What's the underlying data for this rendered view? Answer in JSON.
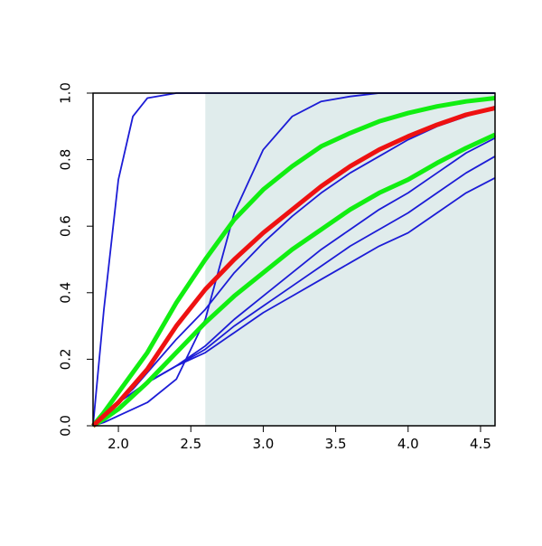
{
  "chart_data": {
    "type": "line",
    "x": [
      1.825,
      1.9,
      2.0,
      2.1,
      2.2,
      2.4,
      2.6,
      2.8,
      3.0,
      3.2,
      3.4,
      3.6,
      3.8,
      4.0,
      4.2,
      4.4,
      4.6
    ],
    "series": [
      {
        "color": "#1c1cd6",
        "weight": "normal",
        "values": [
          0,
          0.35,
          0.74,
          0.93,
          0.985,
          1,
          1,
          1,
          1,
          1,
          1,
          1,
          1,
          1,
          1,
          1,
          1
        ]
      },
      {
        "color": "#1c1cd6",
        "weight": "normal",
        "values": [
          0,
          0.01,
          0.03,
          0.05,
          0.07,
          0.14,
          0.32,
          0.64,
          0.83,
          0.93,
          0.975,
          0.99,
          1,
          1,
          1,
          1,
          1
        ]
      },
      {
        "color": "#1c1cd6",
        "weight": "normal",
        "values": [
          0,
          0.03,
          0.07,
          0.11,
          0.16,
          0.26,
          0.35,
          0.46,
          0.55,
          0.63,
          0.7,
          0.76,
          0.81,
          0.86,
          0.9,
          0.93,
          0.96
        ]
      },
      {
        "color": "#1c1cd6",
        "weight": "normal",
        "values": [
          0,
          0.03,
          0.07,
          0.1,
          0.13,
          0.18,
          0.24,
          0.32,
          0.39,
          0.46,
          0.53,
          0.59,
          0.65,
          0.7,
          0.76,
          0.82,
          0.865
        ]
      },
      {
        "color": "#1c1cd6",
        "weight": "normal",
        "values": [
          0,
          0.03,
          0.07,
          0.1,
          0.13,
          0.18,
          0.23,
          0.3,
          0.36,
          0.42,
          0.48,
          0.54,
          0.59,
          0.64,
          0.7,
          0.76,
          0.81
        ]
      },
      {
        "color": "#1c1cd6",
        "weight": "normal",
        "values": [
          0,
          0.03,
          0.07,
          0.1,
          0.13,
          0.18,
          0.22,
          0.28,
          0.34,
          0.39,
          0.44,
          0.49,
          0.54,
          0.58,
          0.64,
          0.7,
          0.745
        ]
      },
      {
        "color": "#11ee11",
        "weight": "bold",
        "values": [
          0,
          0.04,
          0.1,
          0.16,
          0.22,
          0.37,
          0.5,
          0.62,
          0.71,
          0.78,
          0.84,
          0.88,
          0.915,
          0.94,
          0.96,
          0.975,
          0.985
        ]
      },
      {
        "color": "#11ee11",
        "weight": "bold",
        "values": [
          0,
          0.02,
          0.05,
          0.09,
          0.13,
          0.22,
          0.31,
          0.39,
          0.46,
          0.53,
          0.59,
          0.65,
          0.7,
          0.74,
          0.79,
          0.835,
          0.875
        ]
      },
      {
        "color": "#ee1111",
        "weight": "bold",
        "values": [
          0,
          0.03,
          0.07,
          0.12,
          0.17,
          0.3,
          0.41,
          0.5,
          0.58,
          0.65,
          0.72,
          0.78,
          0.83,
          0.87,
          0.905,
          0.935,
          0.955
        ]
      }
    ],
    "highlight_xrange": [
      2.6,
      4.6
    ],
    "highlight_color": "#e0ecec",
    "xlim": [
      1.825,
      4.6
    ],
    "ylim": [
      0,
      1
    ],
    "xticks": [
      {
        "value": 2,
        "label": "2.0"
      },
      2.5,
      {
        "value": 3,
        "label": "3.0"
      },
      3.5,
      {
        "value": 4,
        "label": "4.0"
      },
      4.5
    ],
    "yticks": [
      {
        "value": 0,
        "label": "0.0"
      },
      0.2,
      0.4,
      0.6,
      0.8,
      {
        "value": 1,
        "label": "1.0"
      }
    ]
  }
}
